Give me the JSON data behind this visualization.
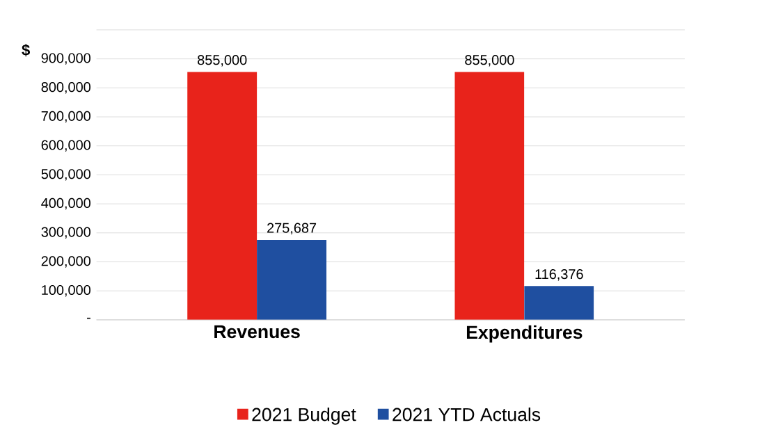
{
  "chart_data": {
    "type": "bar",
    "ylabel": "$",
    "categories": [
      "Revenues",
      "Expenditures"
    ],
    "series": [
      {
        "name": "2021 Budget",
        "color": "#e8231b",
        "values": [
          855000,
          855000
        ],
        "value_labels": [
          "855,000",
          "855,000"
        ]
      },
      {
        "name": "2021 YTD Actuals",
        "color": "#1f4fa0",
        "values": [
          275687,
          116376
        ],
        "value_labels": [
          "275,687",
          "116,376"
        ]
      }
    ],
    "ylim": [
      0,
      1000000
    ],
    "yticks": [
      {
        "value": 0,
        "label": "-"
      },
      {
        "value": 100000,
        "label": "100,000"
      },
      {
        "value": 200000,
        "label": "200,000"
      },
      {
        "value": 300000,
        "label": "300,000"
      },
      {
        "value": 400000,
        "label": "400,000"
      },
      {
        "value": 500000,
        "label": "500,000"
      },
      {
        "value": 600000,
        "label": "600,000"
      },
      {
        "value": 700000,
        "label": "700,000"
      },
      {
        "value": 800000,
        "label": "800,000"
      },
      {
        "value": 900000,
        "label": "900,000"
      },
      {
        "value": 1000000,
        "label": null
      }
    ],
    "grid": "y",
    "legend": "bottom"
  }
}
